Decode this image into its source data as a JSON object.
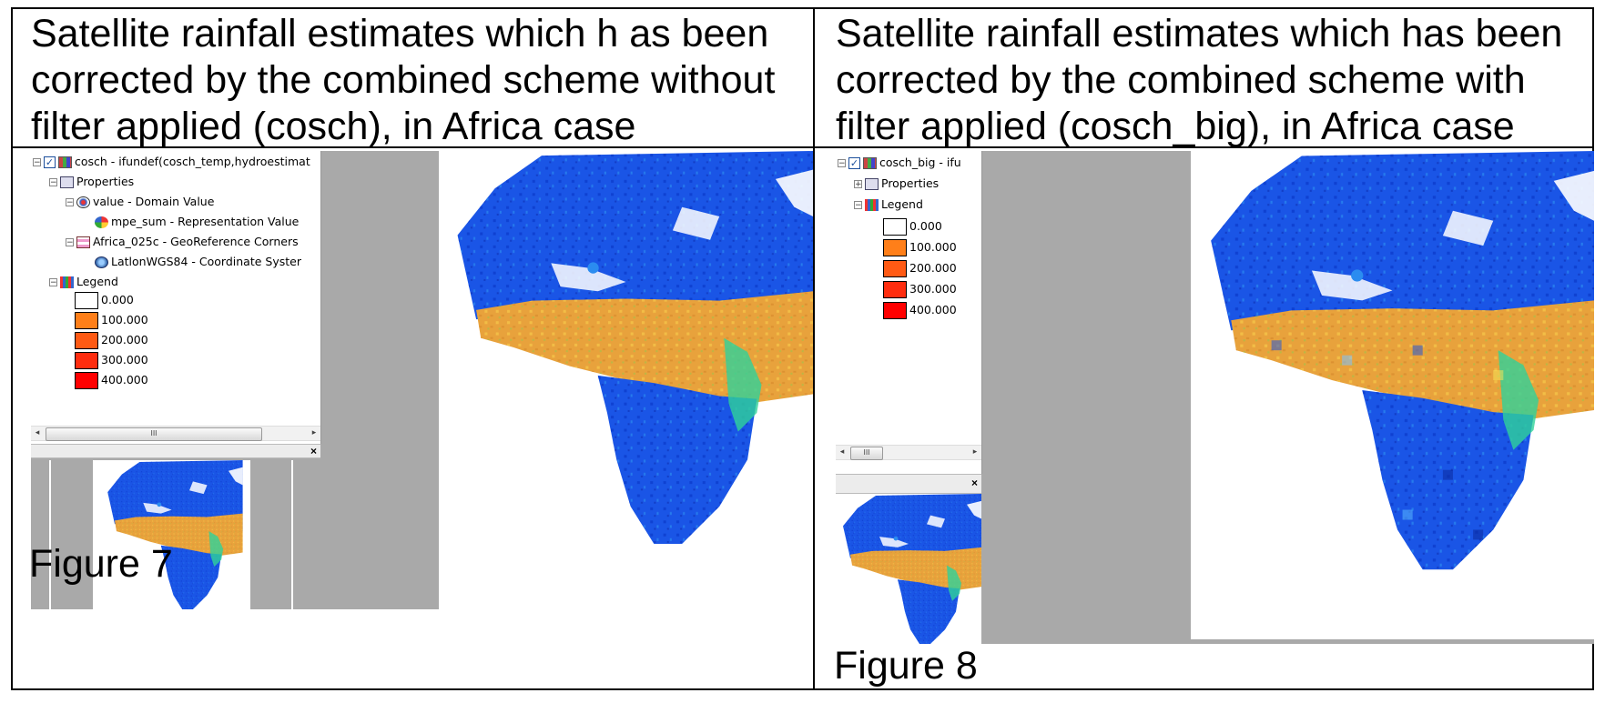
{
  "left": {
    "title_lines": [
      "Satellite rainfall estimates which h as been",
      "corrected by the combined scheme without",
      "filter applied (cosch),  in Africa case"
    ],
    "figure_label": "Figure 7",
    "tree": {
      "layer": "cosch - ifundef(cosch_temp,hydroestimat",
      "properties": "Properties",
      "domain": "value - Domain Value",
      "representation": "mpe_sum - Representation Value",
      "georef": "Africa_025c - GeoReference Corners",
      "coordsys": "LatlonWGS84 - Coordinate Syster",
      "legend": "Legend"
    }
  },
  "right": {
    "title_lines": [
      "Satellite rainfall estimates which has been",
      "corrected by the combined scheme with",
      "filter applied (cosch_big),  in Africa case"
    ],
    "figure_label": "Figure 8",
    "tree": {
      "layer": "cosch_big - ifu",
      "properties": "Properties",
      "legend": "Legend"
    }
  },
  "legend_items": [
    {
      "label": "0.000",
      "color": "#ffffff"
    },
    {
      "label": "100.000",
      "color": "#ff7f19"
    },
    {
      "label": "200.000",
      "color": "#ff5a14"
    },
    {
      "label": "300.000",
      "color": "#ff2d0f"
    },
    {
      "label": "400.000",
      "color": "#ff0000"
    }
  ],
  "scroll_thumb_glyph": "III",
  "icons": {
    "expand": "plus-box-icon",
    "collapse": "minus-box-icon",
    "check": "checkbox-icon",
    "close": "close-icon"
  },
  "colors": {
    "map_bg": "#a9a9a9",
    "rain_low": "#1a55e6",
    "rain_mid": "#e8a23c",
    "rain_high": "#ff3b1a"
  }
}
